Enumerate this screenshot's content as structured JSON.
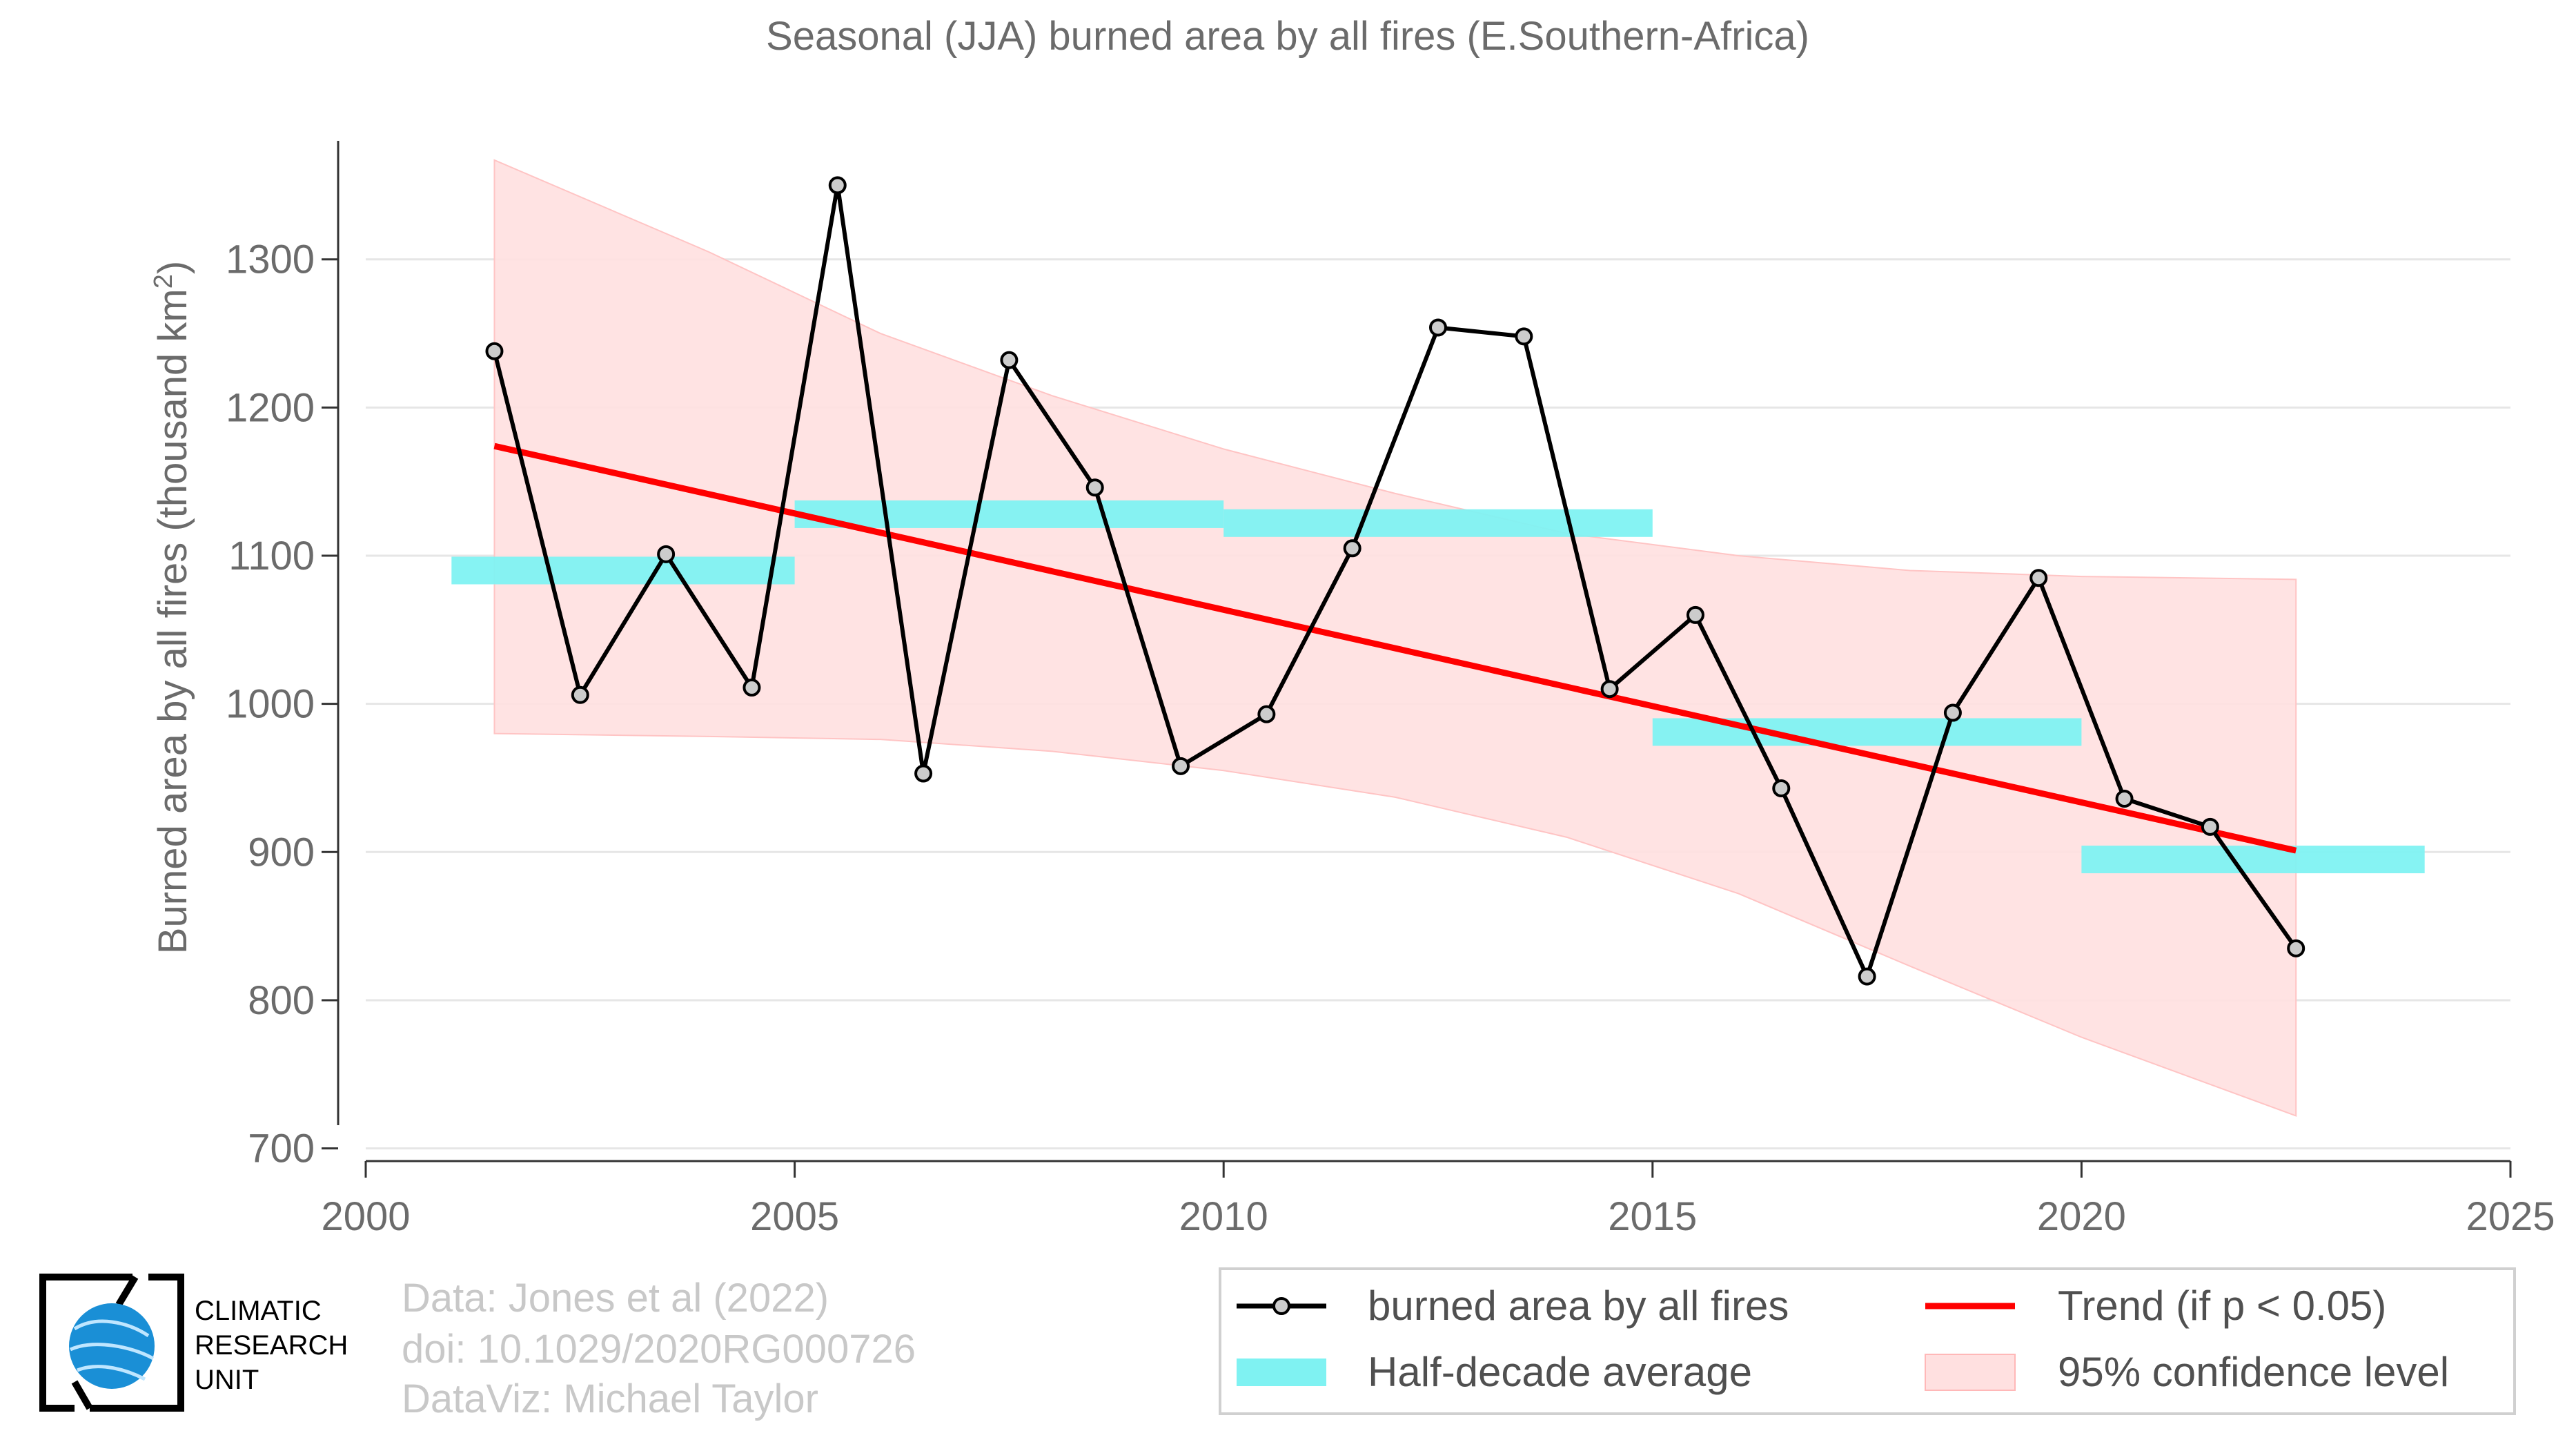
{
  "chart_data": {
    "type": "line",
    "title": "Seasonal (JJA) burned area by all fires (E.Southern-Africa)",
    "ylabel_main": "Burned area by all fires (thousand km",
    "ylabel_sup": "2",
    "ylabel_close": ")",
    "xlabel": "",
    "xlim": [
      2000,
      2025
    ],
    "ylim": [
      670,
      1380
    ],
    "xticks": [
      2000,
      2005,
      2010,
      2015,
      2020,
      2025
    ],
    "yticks": [
      700,
      800,
      900,
      1000,
      1100,
      1200,
      1300
    ],
    "grid": "horizontal",
    "series": [
      {
        "name": "burned area by all fires",
        "color": "#000000",
        "x": [
          2001.5,
          2002.5,
          2003.5,
          2004.5,
          2005.5,
          2006.5,
          2007.5,
          2008.5,
          2009.5,
          2010.5,
          2011.5,
          2012.5,
          2013.5,
          2014.5,
          2015.5,
          2016.5,
          2017.5,
          2018.5,
          2019.5,
          2020.5,
          2021.5,
          2022.5
        ],
        "values": [
          1238,
          1006,
          1101,
          1011,
          1350,
          953,
          1232,
          1146,
          958,
          993,
          1105,
          1254,
          1248,
          1010,
          1060,
          943,
          816,
          994,
          1085,
          936,
          917,
          835
        ]
      }
    ],
    "trend": {
      "name": "Trend (if p < 0.05)",
      "color": "#ff0000",
      "x": [
        2001.5,
        2022.5
      ],
      "values": [
        1174,
        901
      ]
    },
    "half_decade_average": {
      "name": "Half-decade average",
      "color": "#7ff2f2",
      "segments": [
        {
          "x0": 2001,
          "x1": 2005,
          "value": 1090
        },
        {
          "x0": 2005,
          "x1": 2010,
          "value": 1128
        },
        {
          "x0": 2010,
          "x1": 2015,
          "value": 1122
        },
        {
          "x0": 2015,
          "x1": 2020,
          "value": 981
        },
        {
          "x0": 2020,
          "x1": 2024,
          "value": 895
        }
      ]
    },
    "confidence": {
      "name": "95% confidence level",
      "color": "#ffe0e0",
      "x": [
        2001.5,
        2004,
        2006,
        2008,
        2010,
        2012,
        2014,
        2016,
        2018,
        2020,
        2022.5
      ],
      "upper": [
        1367,
        1305,
        1250,
        1208,
        1172,
        1142,
        1115,
        1100,
        1090,
        1086,
        1084
      ],
      "lower": [
        980,
        978,
        976,
        968,
        955,
        937,
        910,
        872,
        823,
        775,
        722
      ]
    },
    "legend_position": "bottom-right"
  },
  "credits": {
    "data": "Data: Jones et al (2022)",
    "doi": "doi: 10.1029/2020RG000726",
    "dataviz": "DataViz: Michael Taylor"
  },
  "logo": {
    "line1": "CLIMATIC",
    "line2": "RESEARCH",
    "line3": "UNIT"
  }
}
